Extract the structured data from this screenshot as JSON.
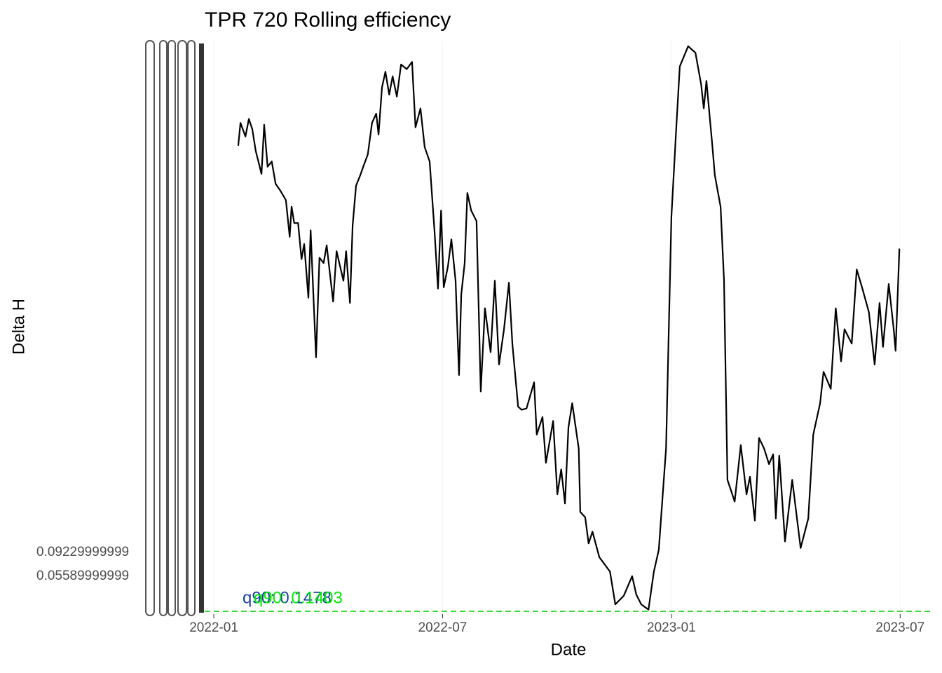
{
  "chart_data": {
    "type": "line",
    "title": "TPR 720 Rolling efficiency",
    "x_label": "Date",
    "y_label": "Delta H",
    "xlim": [
      -0.24,
      18.84
    ],
    "xticks": [
      {
        "value": 0,
        "label": "2022-01"
      },
      {
        "value": 6,
        "label": "2022-07"
      },
      {
        "value": 12,
        "label": "2023-01"
      },
      {
        "value": 18,
        "label": "2023-07"
      }
    ],
    "ylim": [
      0.0024,
      0.8734
    ],
    "yticks": [
      {
        "value": 0.0559,
        "label": "0.05589999999"
      },
      {
        "value": 0.0923,
        "label": "0.09229999999"
      }
    ],
    "hline": {
      "value": 0.0024,
      "color": "#00cc00"
    },
    "annotations": [
      {
        "text": "q90: 0.1478",
        "color": "#1f3f9f"
      },
      {
        "text": "q90: 0.1403",
        "color": "#00ee00"
      }
    ],
    "series": [
      {
        "color": "#000000",
        "x": [
          0.64,
          0.7,
          0.83,
          0.92,
          1.01,
          1.1,
          1.25,
          1.32,
          1.41,
          1.52,
          1.62,
          1.75,
          1.89,
          1.99,
          2.04,
          2.11,
          2.21,
          2.3,
          2.37,
          2.48,
          2.54,
          2.68,
          2.77,
          2.88,
          2.96,
          3.13,
          3.22,
          3.4,
          3.47,
          3.57,
          3.64,
          3.73,
          3.84,
          3.92,
          4.04,
          4.15,
          4.26,
          4.32,
          4.41,
          4.5,
          4.6,
          4.69,
          4.8,
          4.91,
          5.06,
          5.2,
          5.29,
          5.42,
          5.53,
          5.66,
          5.79,
          5.88,
          5.96,
          6.03,
          6.14,
          6.23,
          6.34,
          6.43,
          6.49,
          6.58,
          6.65,
          6.75,
          6.89,
          7.0,
          7.11,
          7.26,
          7.37,
          7.48,
          7.61,
          7.74,
          7.83,
          7.98,
          8.07,
          8.2,
          8.4,
          8.47,
          8.62,
          8.71,
          8.9,
          9.01,
          9.11,
          9.21,
          9.3,
          9.4,
          9.57,
          9.61,
          9.74,
          9.83,
          9.93,
          10.11,
          10.39,
          10.53,
          10.75,
          10.97,
          11.08,
          11.21,
          11.4,
          11.54,
          11.67,
          11.86,
          12.0,
          12.13,
          12.22,
          12.44,
          12.63,
          12.78,
          12.85,
          12.92,
          13.07,
          13.14,
          13.29,
          13.38,
          13.47,
          13.66,
          13.82,
          13.97,
          14.06,
          14.19,
          14.3,
          14.43,
          14.56,
          14.67,
          14.74,
          14.83,
          14.98,
          15.17,
          15.39,
          15.59,
          15.72,
          15.9,
          15.99,
          16.18,
          16.31,
          16.45,
          16.54,
          16.73,
          16.86,
          17.0,
          17.18,
          17.33,
          17.46,
          17.55,
          17.7,
          17.83,
          17.88,
          17.98
        ],
        "values": [
          0.713,
          0.748,
          0.727,
          0.754,
          0.738,
          0.705,
          0.67,
          0.745,
          0.681,
          0.689,
          0.655,
          0.644,
          0.63,
          0.574,
          0.62,
          0.595,
          0.595,
          0.54,
          0.563,
          0.481,
          0.584,
          0.39,
          0.542,
          0.534,
          0.561,
          0.475,
          0.552,
          0.507,
          0.552,
          0.473,
          0.591,
          0.652,
          0.668,
          0.681,
          0.7,
          0.748,
          0.762,
          0.73,
          0.802,
          0.826,
          0.791,
          0.819,
          0.788,
          0.837,
          0.83,
          0.841,
          0.741,
          0.77,
          0.711,
          0.689,
          0.582,
          0.495,
          0.614,
          0.497,
          0.529,
          0.57,
          0.507,
          0.363,
          0.486,
          0.534,
          0.641,
          0.614,
          0.598,
          0.338,
          0.465,
          0.398,
          0.507,
          0.379,
          0.433,
          0.504,
          0.411,
          0.315,
          0.31,
          0.312,
          0.352,
          0.272,
          0.299,
          0.229,
          0.293,
          0.181,
          0.219,
          0.167,
          0.283,
          0.32,
          0.251,
          0.154,
          0.146,
          0.106,
          0.124,
          0.085,
          0.063,
          0.013,
          0.026,
          0.056,
          0.028,
          0.013,
          0.005,
          0.063,
          0.096,
          0.251,
          0.604,
          0.743,
          0.834,
          0.865,
          0.855,
          0.807,
          0.77,
          0.812,
          0.716,
          0.668,
          0.62,
          0.507,
          0.203,
          0.17,
          0.256,
          0.181,
          0.208,
          0.141,
          0.267,
          0.251,
          0.227,
          0.242,
          0.144,
          0.24,
          0.109,
          0.203,
          0.099,
          0.144,
          0.272,
          0.32,
          0.368,
          0.342,
          0.465,
          0.384,
          0.433,
          0.411,
          0.524,
          0.497,
          0.459,
          0.379,
          0.473,
          0.406,
          0.502,
          0.433,
          0.4,
          0.556
        ]
      }
    ]
  }
}
